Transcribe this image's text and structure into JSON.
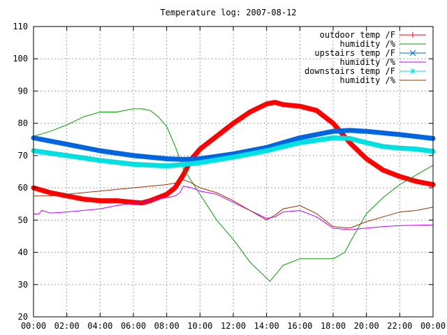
{
  "chart_data": {
    "type": "line",
    "title": "Temperature log: 2007-08-12",
    "xlabel": "",
    "ylabel": "",
    "xlim": [
      0,
      24
    ],
    "ylim": [
      20,
      110
    ],
    "grid": true,
    "legend_placement": "top-right",
    "x_tick_labels": [
      "00:00",
      "02:00",
      "04:00",
      "06:00",
      "08:00",
      "10:00",
      "12:00",
      "14:00",
      "16:00",
      "18:00",
      "20:00",
      "22:00",
      "00:00"
    ],
    "y_tick_labels": [
      "20",
      "30",
      "40",
      "50",
      "60",
      "70",
      "80",
      "90",
      "100",
      "110"
    ],
    "series": [
      {
        "name": "outdoor temp /F",
        "color": "#ff0000",
        "marker": "plus",
        "x": [
          0,
          1,
          2,
          3,
          4,
          5,
          6,
          6.5,
          7,
          8,
          8.5,
          9,
          9.5,
          10,
          11,
          12,
          13,
          14,
          14.5,
          15,
          16,
          17,
          18,
          18.5,
          19,
          20,
          21,
          22,
          23,
          24
        ],
        "y": [
          60,
          58.5,
          57.5,
          56.5,
          56,
          56,
          55.5,
          55.3,
          56,
          58,
          60,
          64,
          69,
          72,
          76,
          80,
          83.5,
          86,
          86.5,
          85.8,
          85.3,
          84,
          80,
          77,
          74,
          69,
          65.5,
          63.5,
          62,
          61
        ]
      },
      {
        "name": "humidity /%",
        "color": "#00a000",
        "marker": "none",
        "x": [
          0,
          1,
          2,
          3,
          4,
          5,
          6,
          6.5,
          7,
          7.5,
          8,
          8.5,
          9,
          9.5,
          10,
          11,
          12,
          13,
          14,
          14.2,
          15,
          16,
          17,
          18,
          18.7,
          19,
          20,
          21,
          22,
          23,
          24
        ],
        "y": [
          76,
          77.5,
          79.5,
          82,
          83.5,
          83.5,
          84.5,
          84.5,
          84,
          82,
          79,
          73,
          66,
          62,
          58,
          50,
          44,
          37,
          32,
          31,
          36,
          38,
          38,
          38,
          40,
          43,
          52,
          57,
          61,
          64,
          67
        ]
      },
      {
        "name": "upstairs temp /F",
        "color": "#0066e0",
        "marker": "x",
        "x": [
          0,
          2,
          4,
          6,
          8,
          9,
          10,
          12,
          14,
          16,
          18,
          19,
          20,
          22,
          24
        ],
        "y": [
          75.5,
          73.5,
          71.5,
          70,
          69,
          68.8,
          69,
          70.5,
          72.5,
          75.5,
          77.5,
          77.8,
          77.5,
          76.5,
          75.3
        ]
      },
      {
        "name": "humidity /%",
        "color": "#c000ff",
        "marker": "none",
        "x": [
          0,
          0.3,
          0.5,
          1,
          2,
          3,
          4,
          5,
          6,
          7,
          8,
          8.5,
          8.8,
          9,
          9.5,
          10,
          11,
          12,
          13,
          14,
          14.5,
          15,
          16,
          17,
          18,
          19,
          20,
          21,
          22,
          23,
          24
        ],
        "y": [
          52,
          51.8,
          53,
          52.2,
          52.5,
          53,
          53.5,
          54.5,
          55.2,
          56,
          57,
          57.5,
          58.5,
          60.5,
          60,
          59,
          58,
          55.5,
          53,
          50.5,
          51,
          52.5,
          53,
          51,
          47.5,
          47,
          47.5,
          48,
          48.3,
          48.4,
          48.5
        ]
      },
      {
        "name": "downstairs temp /F",
        "color": "#00e0e0",
        "marker": "star",
        "x": [
          0,
          2,
          4,
          6,
          8,
          9,
          10,
          12,
          14,
          16,
          18,
          19,
          20,
          21,
          22,
          23,
          24
        ],
        "y": [
          71.5,
          70,
          68.5,
          67.3,
          66.8,
          67.2,
          67.8,
          69.5,
          71.5,
          74,
          75.5,
          75.3,
          74,
          72.8,
          72.3,
          72,
          71.3
        ]
      },
      {
        "name": "humidity /%",
        "color": "#a03000",
        "marker": "none",
        "x": [
          0,
          1,
          2,
          3,
          4,
          5,
          6,
          7,
          8,
          8.5,
          9,
          9.5,
          10,
          11,
          12,
          13,
          14,
          14.5,
          15,
          16,
          17,
          18,
          19,
          20,
          21,
          22,
          23,
          24
        ],
        "y": [
          57.5,
          57.5,
          58,
          58.5,
          59,
          59.5,
          60,
          60.5,
          61,
          61.5,
          62.5,
          61.5,
          60,
          58.5,
          56,
          53,
          50,
          51.5,
          53.5,
          54.5,
          52,
          48,
          47.5,
          49.5,
          51,
          52.5,
          53,
          54
        ]
      }
    ]
  }
}
